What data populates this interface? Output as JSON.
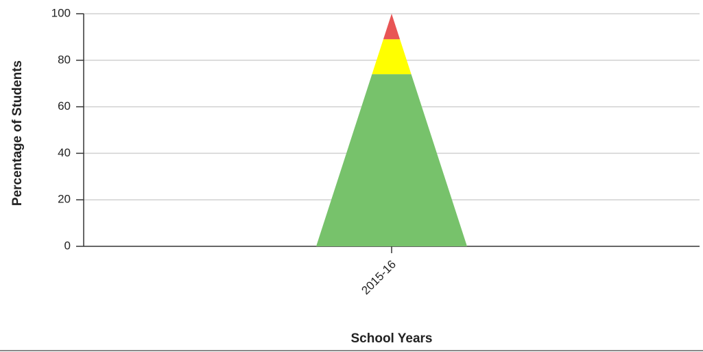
{
  "chart_data": {
    "type": "stacked-triangle",
    "x_label": "School Years",
    "y_label": "Percentage of Students",
    "categories": [
      "2015-16"
    ],
    "series": [
      {
        "color": "#77c26b",
        "values": [
          74
        ]
      },
      {
        "color": "#ffff00",
        "values": [
          15
        ]
      },
      {
        "color": "#e85555",
        "values": [
          11
        ]
      }
    ],
    "ylim": [
      0,
      100
    ],
    "yticks": [
      0,
      20,
      40,
      60,
      80,
      100
    ],
    "grid": true
  }
}
